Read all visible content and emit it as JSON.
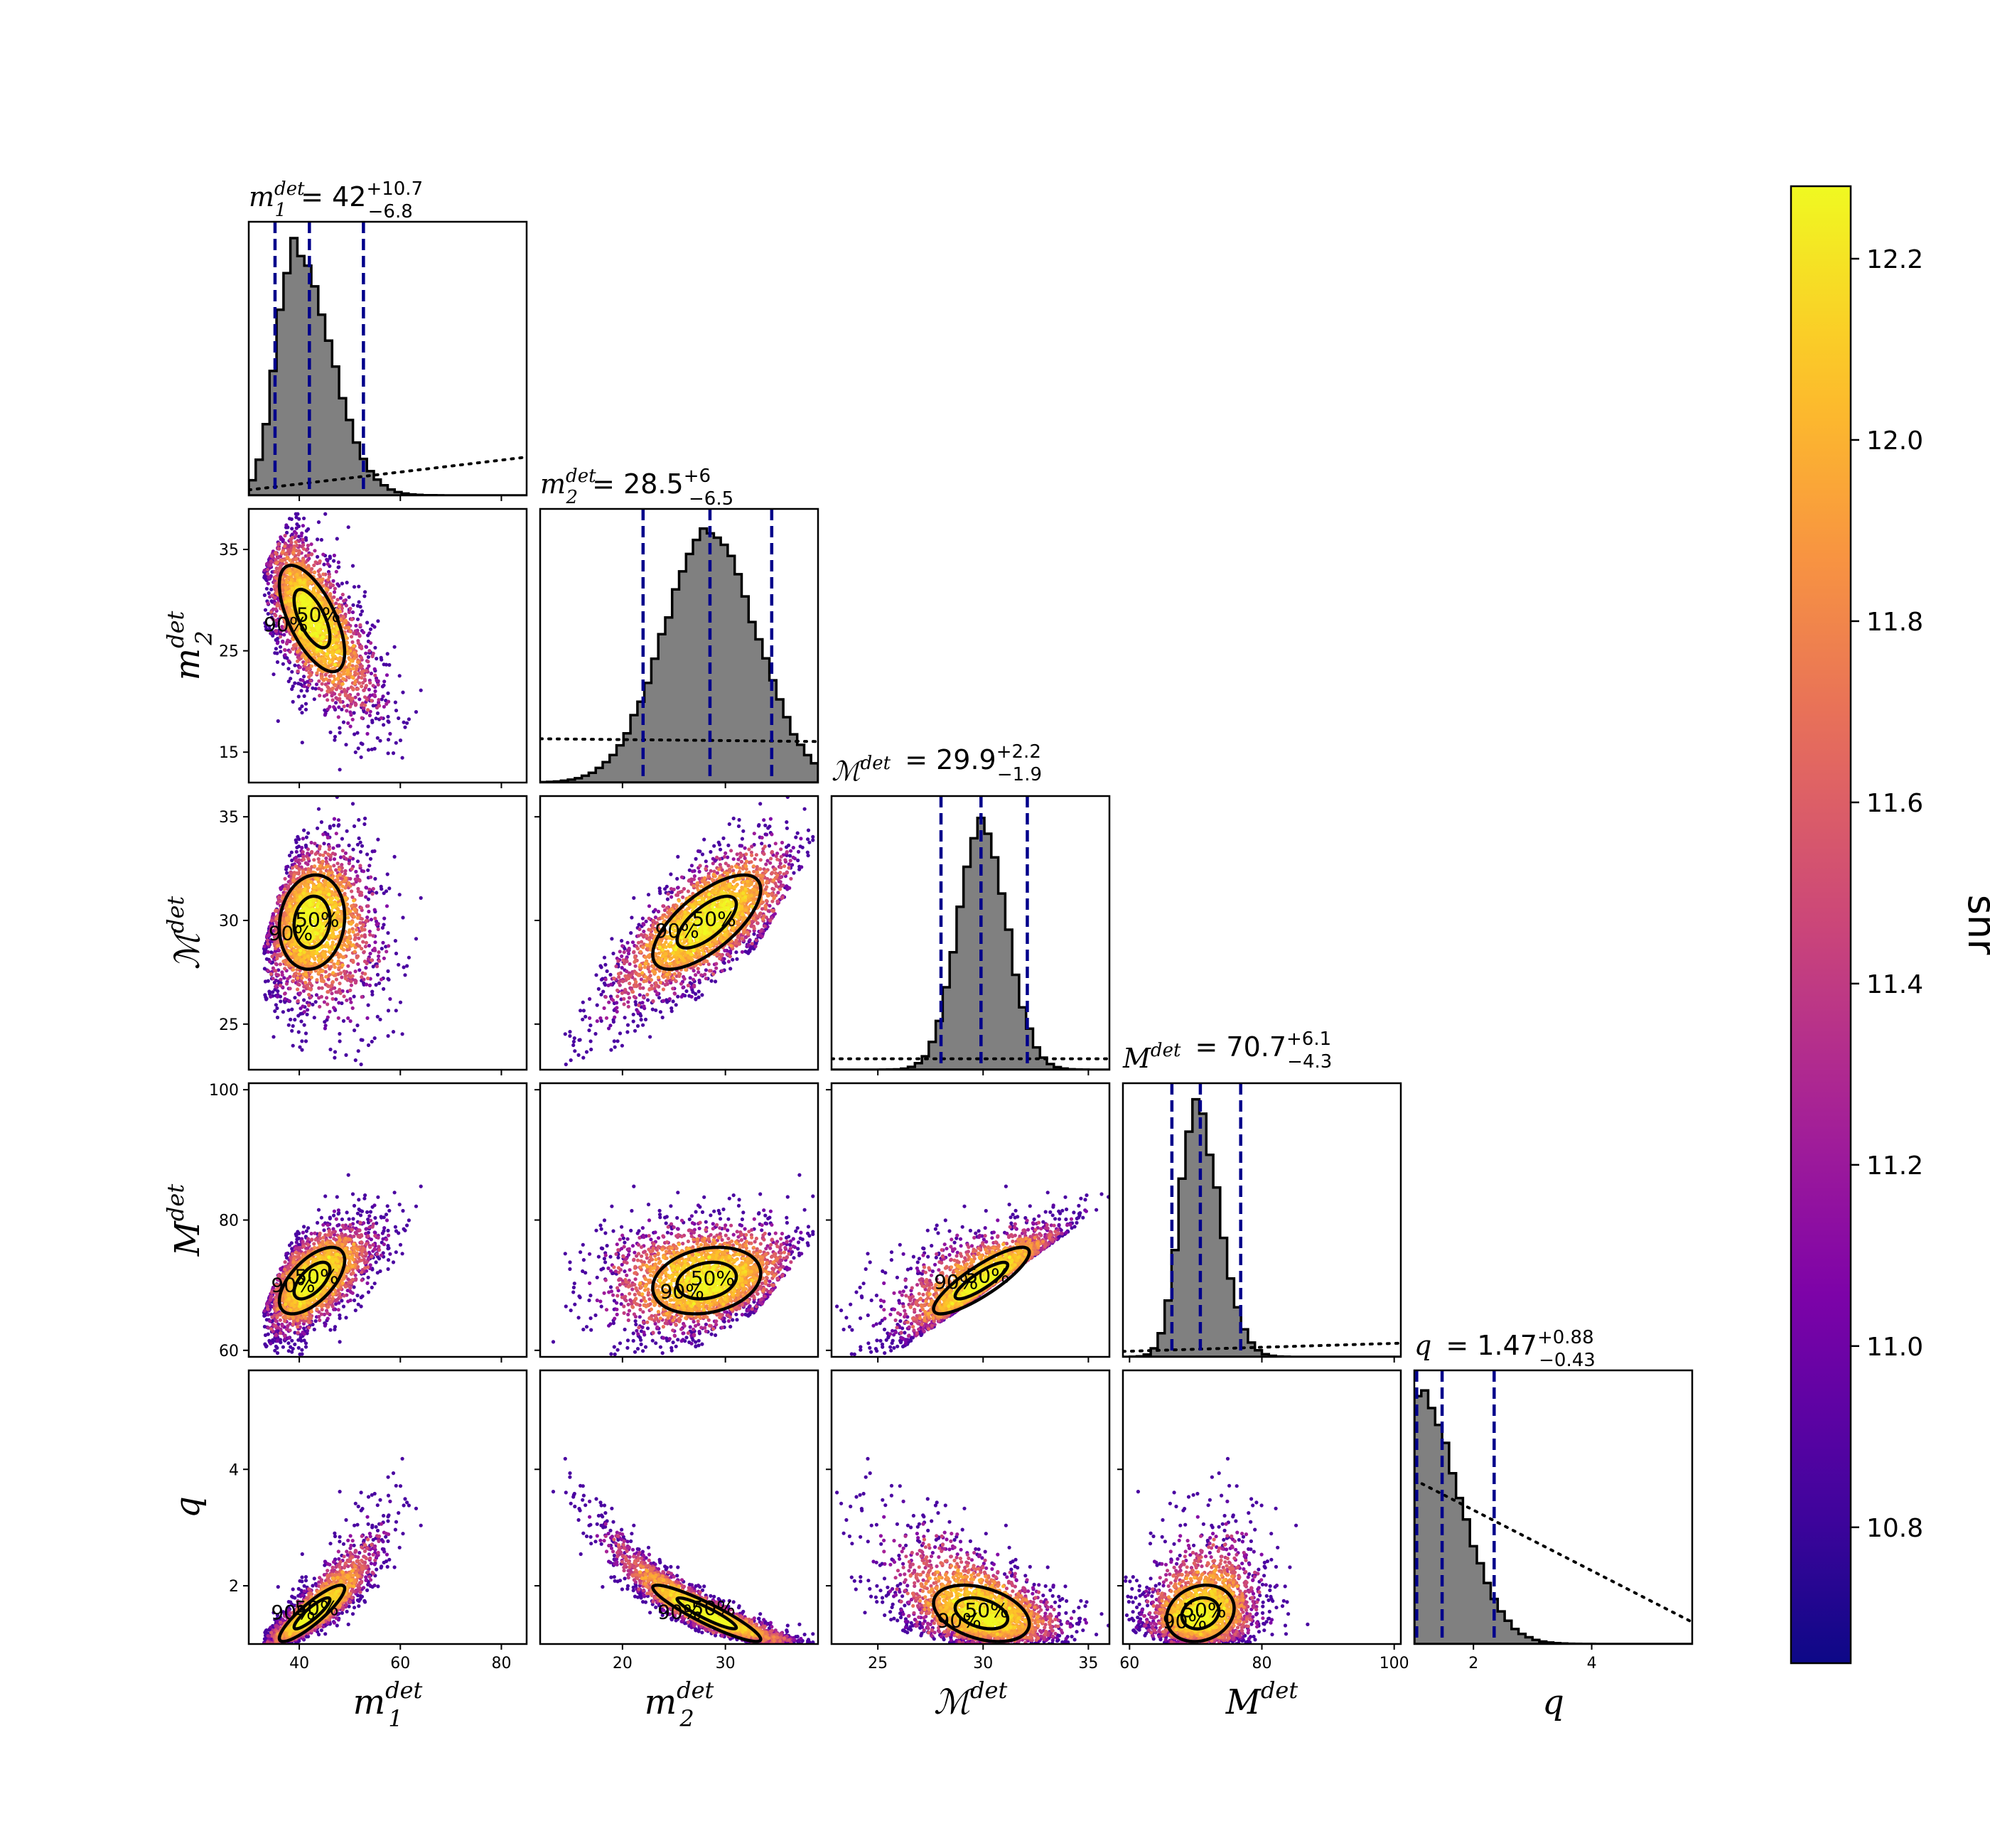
{
  "chart_data": {
    "type": "corner",
    "parameters": [
      {
        "key": "m1",
        "label_main": "m",
        "label_sub": "1",
        "label_sup": "det",
        "range": [
          30,
          85
        ],
        "ticks": [
          40,
          60,
          80
        ],
        "tick_labels": [
          "40",
          "60",
          "80"
        ],
        "title_median": "42",
        "title_plus": "+10.7",
        "title_minus": "−6.8",
        "median": 42,
        "low": 35.2,
        "high": 52.7,
        "mode": 39,
        "sigma_lo": 3.5,
        "sigma_hi": 7,
        "prior": [
          0.02,
          0.14
        ]
      },
      {
        "key": "m2",
        "label_main": "m",
        "label_sub": "2",
        "label_sup": "det",
        "range": [
          12,
          39
        ],
        "ticks": [
          15,
          25,
          35
        ],
        "x_ticks": [
          20,
          30
        ],
        "x_tick_labels": [
          "20",
          "30"
        ],
        "tick_labels": [
          "15",
          "25",
          "35"
        ],
        "title_median": "28.5",
        "title_plus": "+6",
        "title_minus": "−6.5",
        "median": 28.5,
        "low": 22,
        "high": 34.5,
        "mode": 28.5,
        "sigma_lo": 4.5,
        "sigma_hi": 4.5,
        "prior": [
          0.16,
          0.15
        ]
      },
      {
        "key": "mc",
        "label_main": "ℳ",
        "label_sub": "",
        "label_sup": "det",
        "range": [
          22.8,
          36
        ],
        "ticks": [
          25,
          30,
          35
        ],
        "tick_labels": [
          "25",
          "30",
          "35"
        ],
        "title_median": "29.9",
        "title_plus": "+2.2",
        "title_minus": "−1.9",
        "median": 29.9,
        "low": 28,
        "high": 32.1,
        "mode": 29.9,
        "sigma_lo": 1.1,
        "sigma_hi": 1.2,
        "prior": [
          0.04,
          0.04
        ]
      },
      {
        "key": "mt",
        "label_main": "M",
        "label_sub": "",
        "label_sup": "det",
        "range": [
          59,
          101
        ],
        "ticks": [
          60,
          80,
          100
        ],
        "tick_labels": [
          "60",
          "80",
          "100"
        ],
        "title_median": "70.7",
        "title_plus": "+6.1",
        "title_minus": "−4.3",
        "median": 70.7,
        "low": 66.4,
        "high": 76.8,
        "mode": 70,
        "sigma_lo": 2.4,
        "sigma_hi": 3.5,
        "prior": [
          0.02,
          0.05
        ]
      },
      {
        "key": "q",
        "label_main": "q",
        "label_sub": "",
        "label_sup": "",
        "range": [
          1,
          5.7
        ],
        "ticks": [
          2,
          4
        ],
        "tick_labels": [
          "2",
          "4"
        ],
        "title_median": "1.47",
        "title_plus": "+0.88",
        "title_minus": "−0.43",
        "median": 1.47,
        "low": 1.04,
        "high": 2.35,
        "mode": 1.05,
        "sigma_lo": 0.3,
        "sigma_hi": 0.7,
        "prior": [
          0.6,
          0.08
        ]
      }
    ],
    "colorbar": {
      "label": "snr",
      "min": 10.65,
      "max": 12.28,
      "ticks": [
        10.8,
        11.0,
        11.2,
        11.4,
        11.6,
        11.8,
        12.0,
        12.2
      ],
      "tick_labels": [
        "10.8",
        "11.0",
        "11.2",
        "11.4",
        "11.6",
        "11.8",
        "12.0",
        "12.2"
      ],
      "colormap": "plasma"
    },
    "contour_levels": [
      "50%",
      "90%"
    ],
    "colors": {
      "hist_fill": "#808080",
      "hist_edge": "#000000",
      "quantile_line": "#00008b",
      "prior_line": "#000000",
      "contour": "#000000"
    }
  }
}
